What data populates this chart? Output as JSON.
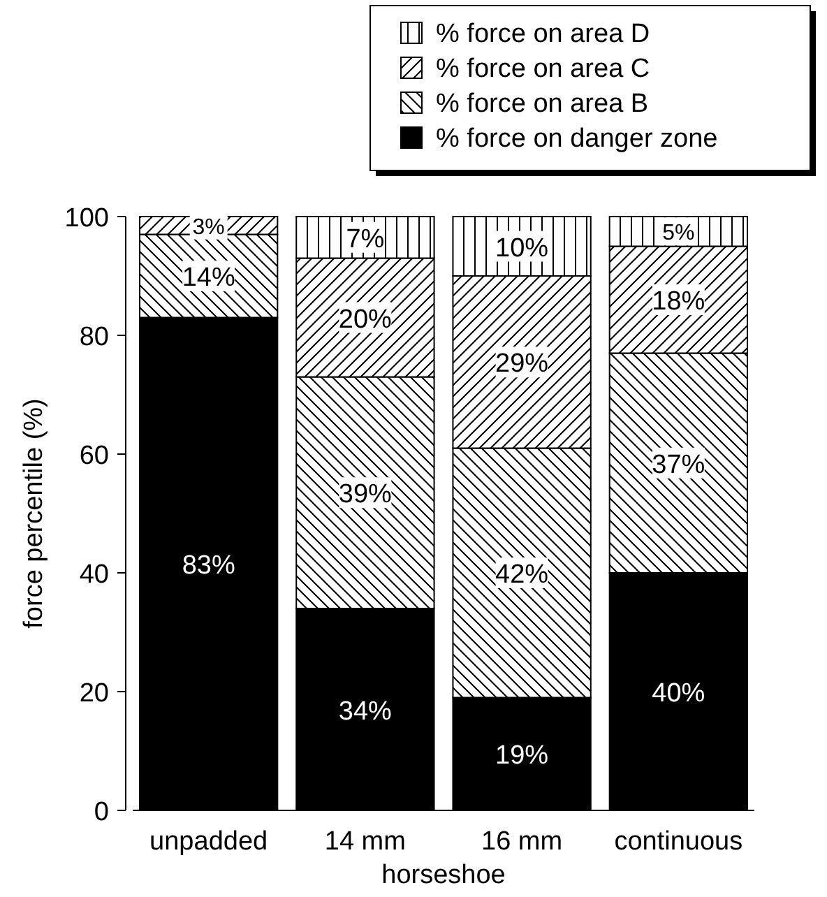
{
  "chart_data": {
    "type": "bar",
    "stacked": true,
    "xlabel": "horseshoe",
    "ylabel": "force percentile (%)",
    "categories": [
      "unpadded",
      "14 mm",
      "16 mm",
      "continuous"
    ],
    "series": [
      {
        "name": "% force on danger zone",
        "color": "#000000",
        "values": [
          83,
          34,
          19,
          40
        ],
        "value_labels": [
          "83%",
          "34%",
          "19%",
          "40%"
        ]
      },
      {
        "name": "% force on area B",
        "color": "#000000",
        "values": [
          14,
          39,
          42,
          37
        ],
        "value_labels": [
          "14%",
          "39%",
          "42%",
          "37%"
        ]
      },
      {
        "name": "% force on area C",
        "color": "#000000",
        "values": [
          3,
          20,
          29,
          18
        ],
        "value_labels": [
          "3%",
          "20%",
          "29%",
          "18%"
        ]
      },
      {
        "name": "% force on area D",
        "color": "#000000",
        "values": [
          0,
          7,
          10,
          5
        ],
        "value_labels": [
          null,
          "7%",
          "10%",
          "5%"
        ]
      }
    ],
    "ylim": [
      0,
      100
    ],
    "yticks": [
      0,
      20,
      40,
      60,
      80,
      100
    ],
    "grid": false,
    "legend": "top right"
  }
}
